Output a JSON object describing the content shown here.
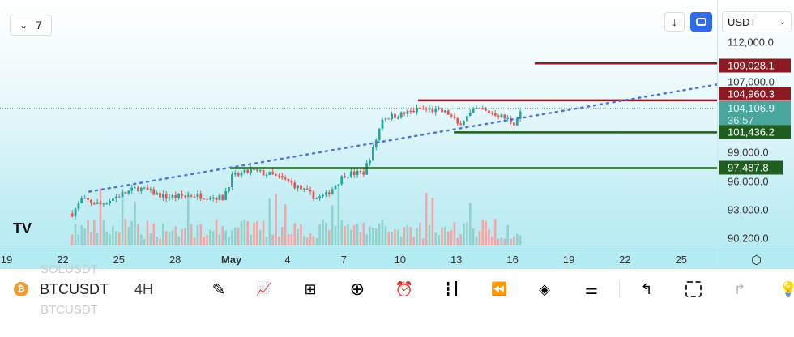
{
  "top": {
    "interval_button": "7",
    "collapse_icon": "chevron-down-icon"
  },
  "currency_select": "USDT",
  "price_axis": [
    "112,000.0",
    "107,000.0",
    "99,000.0",
    "96,000.0",
    "93,000.0",
    "90,200.0"
  ],
  "price_tags": [
    {
      "label": "109,028.1",
      "color": "#8b1a22"
    },
    {
      "label": "104,960.3",
      "color": "#8b1a22"
    },
    {
      "label": "101,436.2",
      "color": "#1e5e1e"
    },
    {
      "label": "97,487.8",
      "color": "#1e5e1e"
    }
  ],
  "current_price": {
    "label": "104,106.9",
    "countdown": "36:57",
    "color": "#4aa69c"
  },
  "date_axis": [
    "19",
    "22",
    "25",
    "28",
    "May",
    "4",
    "7",
    "10",
    "13",
    "16",
    "19",
    "22",
    "25"
  ],
  "symbol": "BTCUSDT",
  "interval": "4H",
  "ghost_symbols": [
    "SOLUSDT",
    "BTCUSDT"
  ],
  "chart_data": {
    "type": "candlestick",
    "xlabel": "date (days from Apr 19)",
    "ylabel": "USDT",
    "ylim": [
      90200,
      112000
    ],
    "waypoints_day": [
      3.5,
      4,
      5,
      6,
      7,
      8.5,
      10,
      11.5,
      12,
      13,
      14,
      15,
      16.5,
      17,
      18,
      19,
      19.5,
      20,
      21,
      22,
      23,
      23.5,
      24,
      25,
      26,
      27,
      27.5
    ],
    "waypoints_price": [
      92500,
      94000,
      93500,
      94500,
      95300,
      94300,
      94500,
      94200,
      96500,
      97200,
      96800,
      96000,
      94200,
      94500,
      96800,
      97000,
      99500,
      103000,
      103400,
      104000,
      103800,
      103500,
      102300,
      104000,
      103500,
      102500,
      104100
    ],
    "horizontal_lines": [
      {
        "price": 109028.1,
        "from_day": 28.1,
        "color": "#8b1a22"
      },
      {
        "price": 104960.3,
        "from_day": 21.9,
        "color": "#8b1a22"
      },
      {
        "price": 101436.2,
        "from_day": 23.8,
        "color": "#1e5e1e"
      },
      {
        "price": 97487.8,
        "from_day": 11.9,
        "color": "#1e5e1e"
      }
    ],
    "trendline": {
      "start": [
        4.4,
        94900
      ],
      "end": [
        37.8,
        106700
      ],
      "color": "#4f74d9",
      "style": "dotted"
    }
  }
}
